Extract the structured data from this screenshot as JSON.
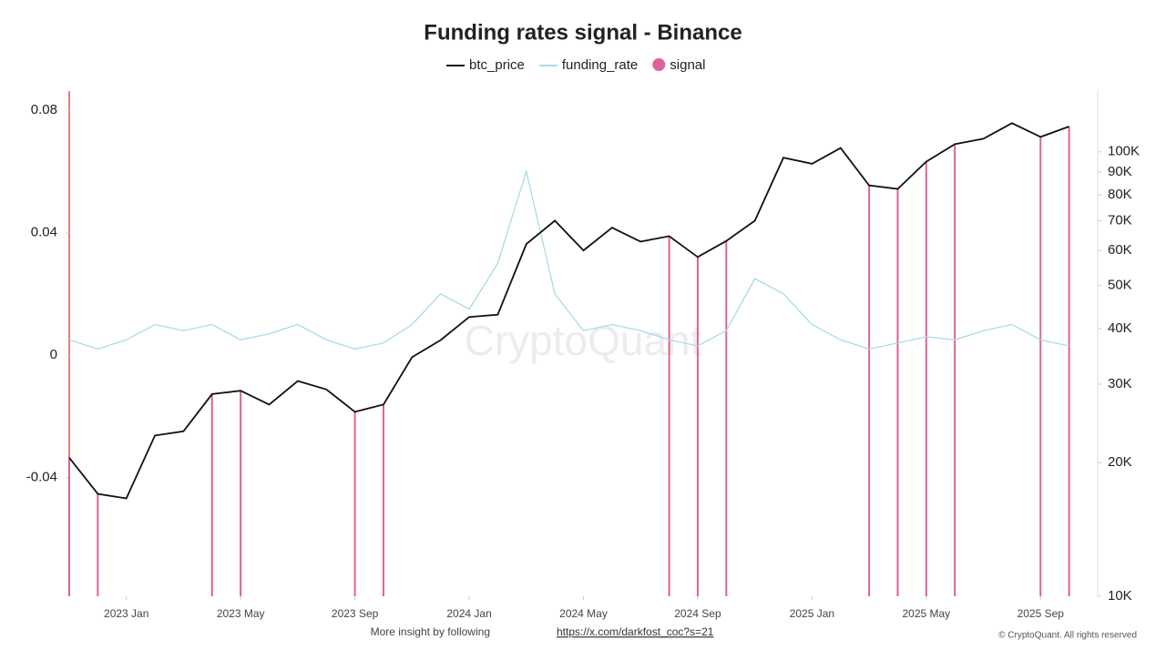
{
  "chart_data": {
    "type": "line",
    "title": "Funding rates signal - Binance",
    "watermark": "CryptoQuant",
    "footer": {
      "text": "More insight by following",
      "link": "https://x.com/darkfost_coc?s=21",
      "copyright": "© CryptoQuant. All rights reserved"
    },
    "x": [
      "2022-11",
      "2022-12",
      "2023-01",
      "2023-02",
      "2023-03",
      "2023-04",
      "2023-05",
      "2023-06",
      "2023-07",
      "2023-08",
      "2023-09",
      "2023-10",
      "2023-11",
      "2023-12",
      "2024-01",
      "2024-02",
      "2024-03",
      "2024-04",
      "2024-05",
      "2024-06",
      "2024-07",
      "2024-08",
      "2024-09",
      "2024-10",
      "2024-11",
      "2024-12",
      "2025-01",
      "2025-02",
      "2025-03",
      "2025-04",
      "2025-05",
      "2025-06",
      "2025-07",
      "2025-08",
      "2025-09",
      "2025-10"
    ],
    "xlim": [
      "2022-11",
      "2025-11"
    ],
    "xticks": [
      {
        "value": "2023-01",
        "label": "2023 Jan"
      },
      {
        "value": "2023-05",
        "label": "2023 May"
      },
      {
        "value": "2023-09",
        "label": "2023 Sep"
      },
      {
        "value": "2024-01",
        "label": "2024 Jan"
      },
      {
        "value": "2024-05",
        "label": "2024 May"
      },
      {
        "value": "2024-09",
        "label": "2024 Sep"
      },
      {
        "value": "2025-01",
        "label": "2025 Jan"
      },
      {
        "value": "2025-05",
        "label": "2025 May"
      },
      {
        "value": "2025-09",
        "label": "2025 Sep"
      }
    ],
    "ylim": [
      -0.0787,
      0.0862
    ],
    "yticks": [
      -0.04,
      0,
      0.04,
      0.08
    ],
    "y2lim": [
      10000,
      137000
    ],
    "y2scale": "log",
    "y2ticks": [
      {
        "value": 10000,
        "label": "10K"
      },
      {
        "value": 20000,
        "label": "20K"
      },
      {
        "value": 30000,
        "label": "30K"
      },
      {
        "value": 40000,
        "label": "40K"
      },
      {
        "value": 50000,
        "label": "50K"
      },
      {
        "value": 60000,
        "label": "60K"
      },
      {
        "value": 70000,
        "label": "70K"
      },
      {
        "value": 80000,
        "label": "80K"
      },
      {
        "value": 90000,
        "label": "90K"
      },
      {
        "value": 100000,
        "label": "100K"
      }
    ],
    "series": [
      {
        "name": "btc_price",
        "color": "#111111",
        "axis": "y2",
        "kind": "line",
        "values": [
          20500,
          17000,
          16600,
          23000,
          23500,
          28500,
          29000,
          27000,
          30500,
          29200,
          26000,
          27000,
          34500,
          37700,
          42500,
          43000,
          62000,
          70000,
          60000,
          67500,
          62800,
          64600,
          58000,
          63000,
          70000,
          97000,
          94000,
          102000,
          84000,
          82500,
          95000,
          104000,
          107000,
          116000,
          108000,
          114000
        ]
      },
      {
        "name": "funding_rate",
        "color": "#a8dce8",
        "axis": "y",
        "kind": "line",
        "values": [
          0.005,
          0.002,
          0.005,
          0.01,
          0.008,
          0.01,
          0.005,
          0.007,
          0.01,
          0.005,
          0.002,
          0.004,
          0.01,
          0.02,
          0.015,
          0.03,
          0.06,
          0.02,
          0.008,
          0.01,
          0.008,
          0.005,
          0.003,
          0.008,
          0.025,
          0.02,
          0.01,
          0.005,
          0.002,
          0.004,
          0.006,
          0.005,
          0.008,
          0.01,
          0.005,
          0.003
        ]
      },
      {
        "name": "signal",
        "color": "#e0609a",
        "axis": "y2",
        "kind": "signal",
        "values": [
          20500,
          17000,
          null,
          null,
          null,
          28500,
          29000,
          null,
          null,
          null,
          26000,
          27000,
          null,
          null,
          null,
          null,
          null,
          null,
          null,
          null,
          null,
          64600,
          58000,
          63000,
          null,
          null,
          null,
          null,
          84000,
          82500,
          95000,
          104000,
          null,
          null,
          108000,
          114000
        ]
      }
    ]
  }
}
